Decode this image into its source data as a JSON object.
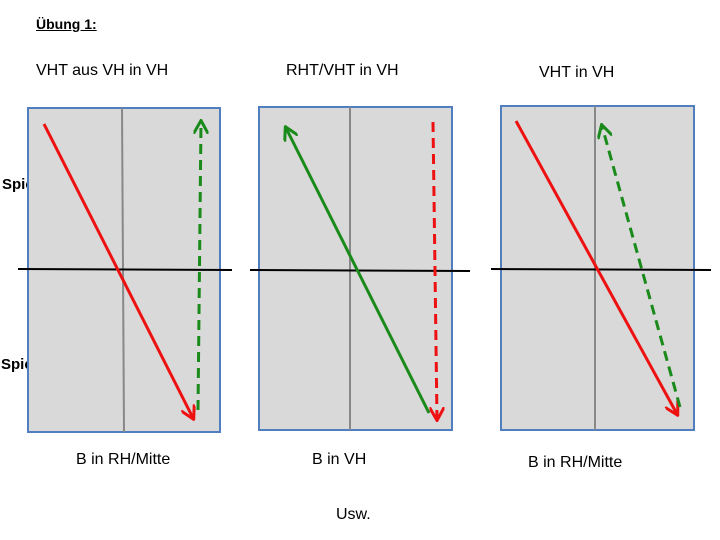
{
  "title": "Übung 1:",
  "side_labels": {
    "player_a": "Spieler A",
    "player_b": "Spieler B"
  },
  "panels": [
    {
      "heading": "VHT aus VH in VH",
      "footer": "B in RH/Mitte",
      "arrows": [
        {
          "color": "#ee1111",
          "style": "solid"
        },
        {
          "color": "#1a8a1a",
          "style": "dashed"
        }
      ]
    },
    {
      "heading": "RHT/VHT in VH",
      "footer": "B in VH",
      "arrows": [
        {
          "color": "#1a8a1a",
          "style": "solid"
        },
        {
          "color": "#ee1111",
          "style": "dashed"
        }
      ]
    },
    {
      "heading": "VHT in VH",
      "footer": "B in RH/Mitte",
      "arrows": [
        {
          "color": "#ee1111",
          "style": "solid"
        },
        {
          "color": "#1a8a1a",
          "style": "dashed"
        }
      ]
    }
  ],
  "bottom_note": "Usw.",
  "colors": {
    "table_fill": "#d9d9d9",
    "table_border": "#4f7fbf",
    "center_line": "#888888",
    "net": "#000000"
  }
}
